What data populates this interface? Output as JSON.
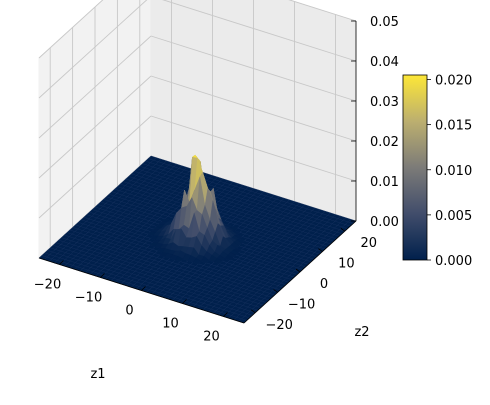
{
  "chart_data": {
    "type": "surface3d",
    "title": "",
    "xlabel": "z1",
    "ylabel": "z2",
    "zlabel": "",
    "xlim": [
      -25,
      25
    ],
    "ylim": [
      -25,
      25
    ],
    "zlim": [
      0,
      0.05
    ],
    "x_ticks": [
      "−20",
      "−10",
      "0",
      "10",
      "20"
    ],
    "y_ticks": [
      "−20",
      "−10",
      "0",
      "10",
      "20"
    ],
    "z_ticks": [
      "0.00",
      "0.01",
      "0.02",
      "0.03",
      "0.04",
      "0.05"
    ],
    "grid": true,
    "colormap": "cividis",
    "colormap_colors": [
      "#00204c",
      "#414d6b",
      "#7c7b78",
      "#bcaf6f",
      "#fde737"
    ],
    "colorbar": {
      "range": [
        0,
        0.0205
      ],
      "ticks": [
        "0.000",
        "0.005",
        "0.010",
        "0.015",
        "0.020"
      ],
      "placement": "right"
    },
    "surface": {
      "description": "empirical density estimate; near zero across the domain with a noisy peak centered near (0, 0)",
      "grid_range": [
        -25,
        25
      ],
      "peak_center": [
        0,
        0
      ],
      "peak_value": 0.021,
      "peak_spread": 3
    }
  }
}
